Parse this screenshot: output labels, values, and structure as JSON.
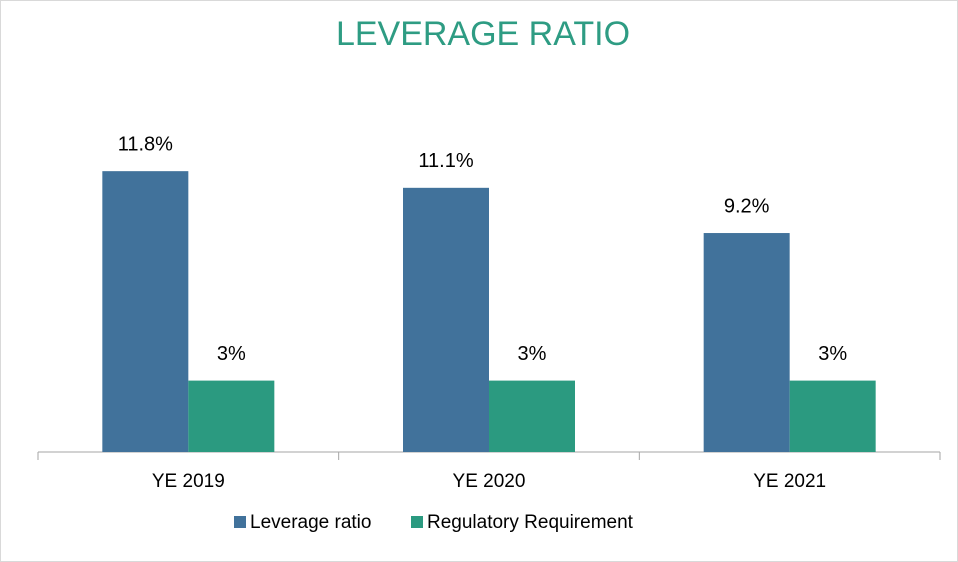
{
  "chart_data": {
    "type": "bar",
    "title": "LEVERAGE RATIO",
    "categories": [
      "YE 2019",
      "YE 2020",
      "YE 2021"
    ],
    "series": [
      {
        "name": "Leverage ratio",
        "color": "#41729b",
        "values": [
          11.8,
          11.1,
          9.2
        ],
        "value_labels": [
          "11.8%",
          "11.1%",
          "9.2%"
        ]
      },
      {
        "name": "Regulatory Requirement",
        "color": "#2b9a80",
        "values": [
          3,
          3,
          3
        ],
        "value_labels": [
          "3%",
          "3%",
          "3%"
        ]
      }
    ]
  }
}
